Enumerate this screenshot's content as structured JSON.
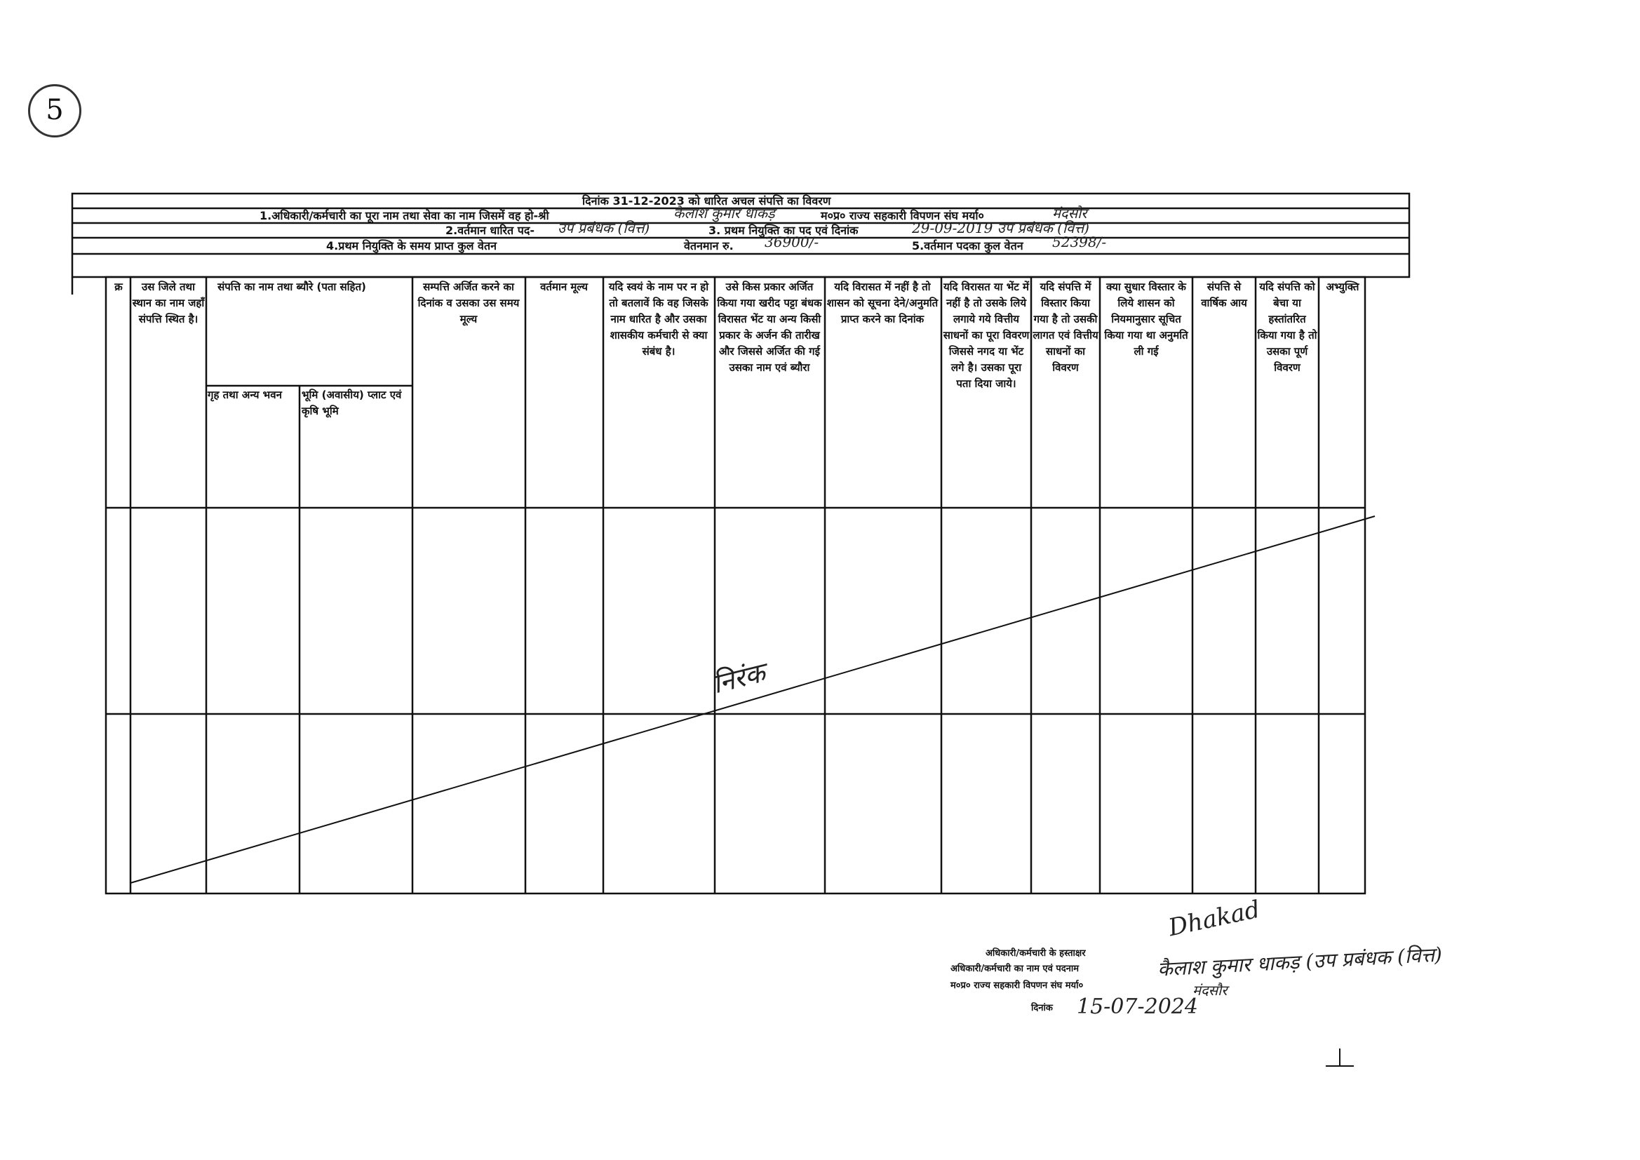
{
  "page_mark": "5",
  "form": {
    "title": "दिनांक 31-12-2023 को धारित अचल संपत्ति का विवरण",
    "line1_label": "1.अधिकारी/कर्मचारी का पूरा नाम तथा सेवा का नाम जिसमें वह हो-श्री",
    "line1_name": "कैलाश कुमार धाकड़",
    "line1_org": "म०प्र० राज्य सहकारी विपणन संघ मर्या०",
    "line1_place": "मंदसौर",
    "line2_label": "2.वर्तमान धारित पद-",
    "line2_value": "उप प्रबंधक (वित्त)",
    "line3_label": "3. प्रथम नियुक्ति का पद एवं दिनांक",
    "line3_value": "29-09-2019 उप प्रबंधक (वित्त)",
    "line4_label": "4.प्रथम नियुक्ति के समय प्राप्त कुल वेतन",
    "line4_pay_label": "वेतनमान रु.",
    "line4_pay_value": "36900/-",
    "line5_label": "5.वर्तमान पदका कुल वेतन",
    "line5_value": "52398/-"
  },
  "table": {
    "columns": [
      "क्र",
      "उस जिले तथा स्थान का नाम जहाँ संपत्ति स्थित है।",
      "संपत्ति का नाम तथा ब्यौरे (पता सहित)",
      "सम्पत्ति अर्जित करने का दिनांक व उसका उस समय मूल्य",
      "वर्तमान मूल्य",
      "यदि स्वयं के नाम पर न हो तो बतलावें कि वह जिसके नाम धारित है और उसका शासकीय कर्मचारी से क्या संबंध है।",
      "उसे किस प्रकार अर्जित किया गया खरीद पट्टा बंधक विरासत भेंट या अन्य किसी प्रकार के अर्जन की तारीख और जिससे अर्जित की गई उसका नाम एवं ब्यौरा",
      "यदि विरासत में नहीं है तो शासन को सूचना देने/अनुमति प्राप्त करने का दिनांक",
      "यदि विरासत या भेंट में नहीं है तो उसके लिये लगाये गये वित्तीय साधनों का पूरा विवरण जिससे नगद या भेंट लगे है। उसका पूरा पता दिया जाये।",
      "यदि संपत्ति में विस्तार किया गया है तो उसकी लागत एवं वित्तीय साधनों का विवरण",
      "क्या सुधार विस्तार के लिये शासन को नियमानुसार सूचित किया गया था अनुमति ली गई",
      "संपत्ति से वार्षिक आय",
      "यदि संपत्ति को बेचा या हस्तांतरित किया गया है तो उसका पूर्ण विवरण",
      "अभ्युक्ति"
    ],
    "sub_columns": [
      "गृह तथा अन्य भवन",
      "भूमि (अवासीय) प्लाट एवं कृषि भूमि"
    ],
    "entry": "निरंक"
  },
  "signature": {
    "sign_label": "अधिकारी/कर्मचारी के हस्ताक्षर",
    "sign_value": "Dhakad",
    "name_label": "अधिकारी/कर्मचारी का नाम एवं पदनाम",
    "name_value": "कैलाश कुमार धाकड़ (उप प्रबंधक (वित्त)",
    "org_label": "म०प्र० राज्य सहकारी विपणन संघ मर्या०",
    "org_value": "मंदसौर",
    "date_label": "दिनांक",
    "date_value": "15-07-2024"
  }
}
